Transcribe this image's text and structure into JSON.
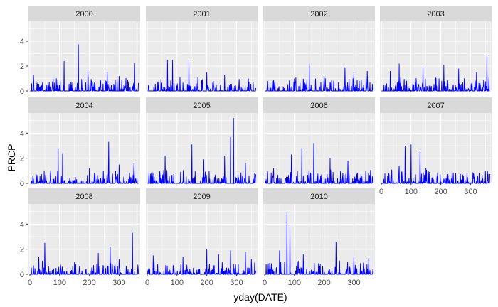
{
  "chart_data": {
    "type": "line",
    "title": "",
    "xlabel": "yday(DATE)",
    "ylabel": "PRCP",
    "xlim": [
      0,
      366
    ],
    "ylim": [
      0,
      5.6
    ],
    "x_ticks": [
      0,
      100,
      200,
      300
    ],
    "y_ticks": [
      0,
      2,
      4
    ],
    "x_tick_labels": [
      "0",
      "100",
      "200",
      "300"
    ],
    "y_tick_labels": [
      "0",
      "2",
      "4"
    ],
    "grid": true,
    "facet_layout": {
      "columns": 4,
      "rows": 3
    },
    "series_color": "#0000ff",
    "panel_background": "#ebebeb",
    "strip_background": "#d9d9d9",
    "facets": [
      {
        "label": "2000",
        "peaks": [
          {
            "x": 163,
            "y": 3.75
          },
          {
            "x": 115,
            "y": 2.4
          },
          {
            "x": 352,
            "y": 2.25
          },
          {
            "x": 195,
            "y": 1.6
          },
          {
            "x": 260,
            "y": 1.5
          },
          {
            "x": 12,
            "y": 1.3
          },
          {
            "x": 78,
            "y": 1.1
          },
          {
            "x": 300,
            "y": 1.2
          }
        ]
      },
      {
        "label": "2001",
        "peaks": [
          {
            "x": 68,
            "y": 2.5
          },
          {
            "x": 85,
            "y": 2.5
          },
          {
            "x": 140,
            "y": 2.4
          },
          {
            "x": 200,
            "y": 1.5
          },
          {
            "x": 260,
            "y": 1.3
          },
          {
            "x": 340,
            "y": 1.0
          },
          {
            "x": 110,
            "y": 1.1
          }
        ]
      },
      {
        "label": "2002",
        "peaks": [
          {
            "x": 150,
            "y": 2.2
          },
          {
            "x": 270,
            "y": 1.9
          },
          {
            "x": 345,
            "y": 1.6
          },
          {
            "x": 300,
            "y": 1.5
          },
          {
            "x": 100,
            "y": 1.0
          },
          {
            "x": 200,
            "y": 1.2
          }
        ]
      },
      {
        "label": "2003",
        "peaks": [
          {
            "x": 355,
            "y": 2.8
          },
          {
            "x": 60,
            "y": 2.2
          },
          {
            "x": 210,
            "y": 2.1
          },
          {
            "x": 140,
            "y": 1.9
          },
          {
            "x": 30,
            "y": 1.6
          },
          {
            "x": 260,
            "y": 1.8
          },
          {
            "x": 320,
            "y": 1.5
          }
        ]
      },
      {
        "label": "2004",
        "peaks": [
          {
            "x": 265,
            "y": 3.3
          },
          {
            "x": 95,
            "y": 2.8
          },
          {
            "x": 110,
            "y": 2.4
          },
          {
            "x": 350,
            "y": 1.6
          },
          {
            "x": 300,
            "y": 1.5
          },
          {
            "x": 200,
            "y": 1.2
          },
          {
            "x": 10,
            "y": 0.6
          }
        ]
      },
      {
        "label": "2005",
        "peaks": [
          {
            "x": 290,
            "y": 5.2
          },
          {
            "x": 280,
            "y": 3.7
          },
          {
            "x": 150,
            "y": 3.1
          },
          {
            "x": 60,
            "y": 2.2
          },
          {
            "x": 260,
            "y": 2.2
          },
          {
            "x": 190,
            "y": 1.9
          },
          {
            "x": 330,
            "y": 1.6
          }
        ]
      },
      {
        "label": "2006",
        "peaks": [
          {
            "x": 165,
            "y": 3.2
          },
          {
            "x": 125,
            "y": 2.8
          },
          {
            "x": 90,
            "y": 2.3
          },
          {
            "x": 220,
            "y": 2.0
          },
          {
            "x": 280,
            "y": 1.8
          },
          {
            "x": 30,
            "y": 1.2
          },
          {
            "x": 340,
            "y": 1.0
          }
        ]
      },
      {
        "label": "2007",
        "peaks": [
          {
            "x": 100,
            "y": 3.1
          },
          {
            "x": 80,
            "y": 3.0
          },
          {
            "x": 130,
            "y": 2.6
          },
          {
            "x": 60,
            "y": 1.4
          },
          {
            "x": 150,
            "y": 1.2
          },
          {
            "x": 350,
            "y": 1.0
          },
          {
            "x": 250,
            "y": 0.8
          }
        ]
      },
      {
        "label": "2008",
        "peaks": [
          {
            "x": 345,
            "y": 3.3
          },
          {
            "x": 50,
            "y": 2.5
          },
          {
            "x": 270,
            "y": 2.2
          },
          {
            "x": 230,
            "y": 1.7
          },
          {
            "x": 30,
            "y": 1.4
          },
          {
            "x": 150,
            "y": 1.0
          },
          {
            "x": 300,
            "y": 1.2
          }
        ]
      },
      {
        "label": "2009",
        "peaks": [
          {
            "x": 200,
            "y": 2.0
          },
          {
            "x": 280,
            "y": 1.9
          },
          {
            "x": 330,
            "y": 1.8
          },
          {
            "x": 20,
            "y": 1.5
          },
          {
            "x": 120,
            "y": 1.4
          },
          {
            "x": 240,
            "y": 1.6
          },
          {
            "x": 350,
            "y": 1.2
          }
        ]
      },
      {
        "label": "2010",
        "peaks": [
          {
            "x": 75,
            "y": 4.9
          },
          {
            "x": 85,
            "y": 3.8
          },
          {
            "x": 240,
            "y": 2.6
          },
          {
            "x": 50,
            "y": 1.9
          },
          {
            "x": 130,
            "y": 1.6
          },
          {
            "x": 300,
            "y": 1.4
          },
          {
            "x": 350,
            "y": 1.3
          }
        ]
      }
    ]
  }
}
